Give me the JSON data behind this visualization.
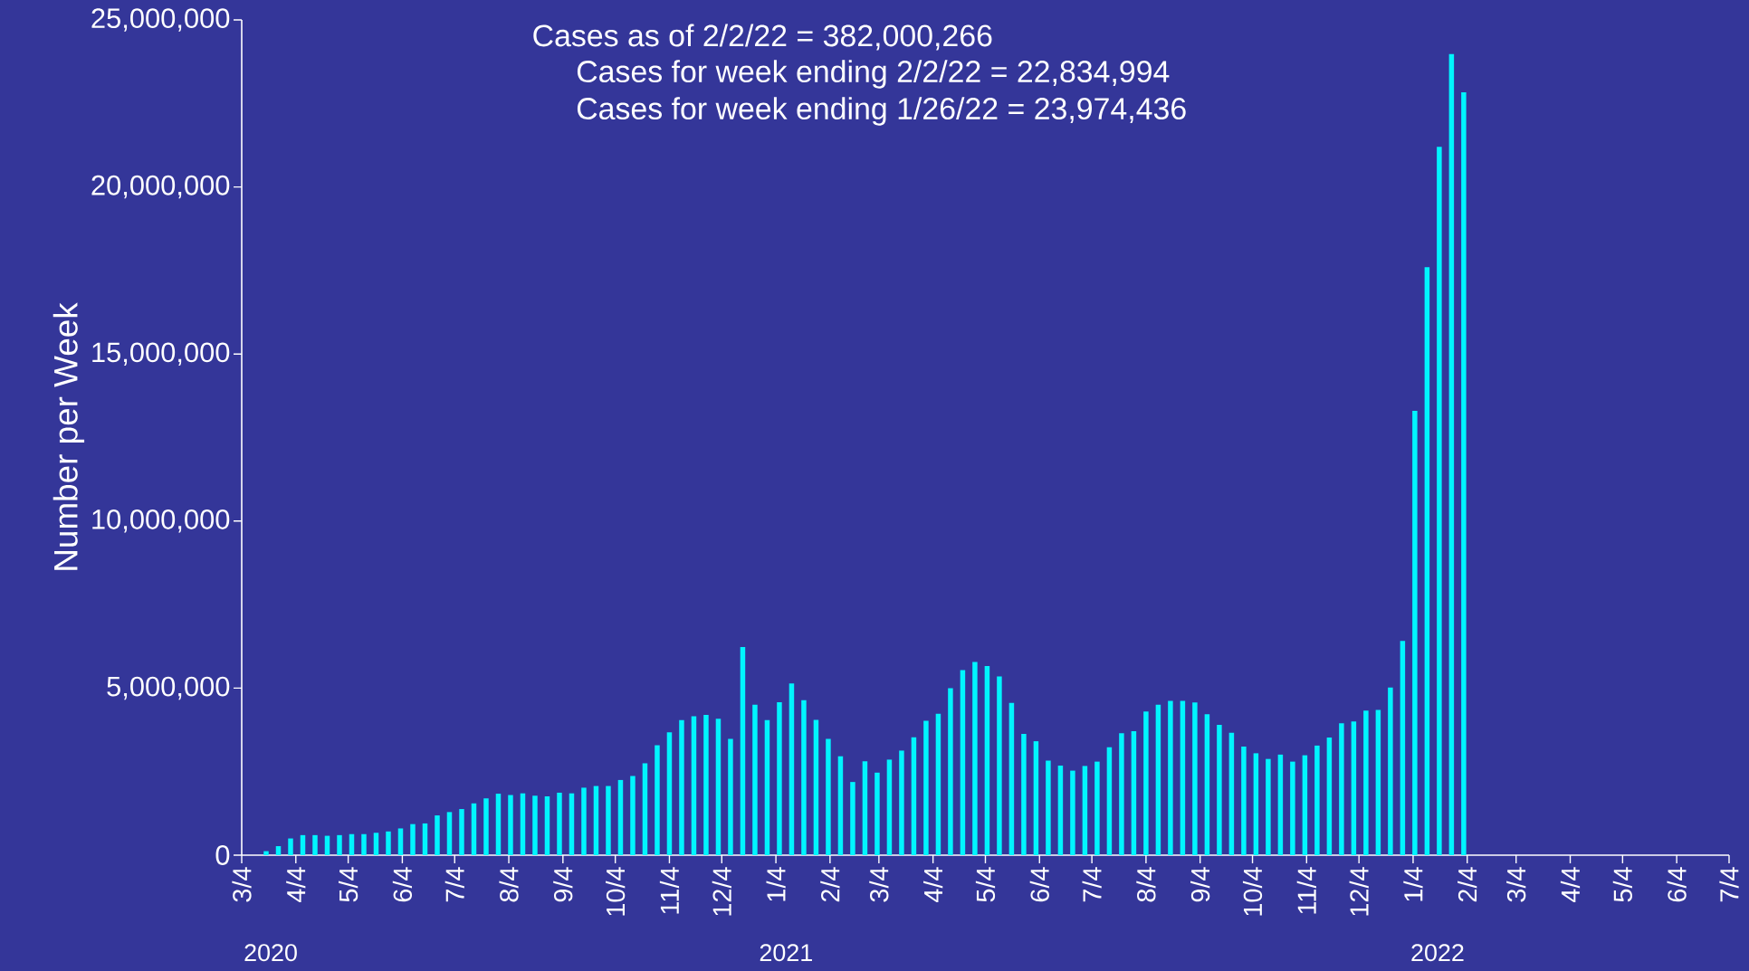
{
  "chart_data": {
    "type": "bar",
    "ylabel": "Number per Week",
    "annotations": [
      "Cases as of 2/2/22 = 382,000,266",
      "Cases for week ending 2/2/22 = 22,834,994",
      "Cases for week ending 1/26/22 = 23,974,436",
      "2020",
      "2021",
      "2022"
    ],
    "color": "#00f5ff",
    "x": [
      "2020-03-18",
      "2020-03-25",
      "2020-04-01",
      "2020-04-08",
      "2020-04-15",
      "2020-04-22",
      "2020-04-29",
      "2020-05-06",
      "2020-05-13",
      "2020-05-20",
      "2020-05-27",
      "2020-06-03",
      "2020-06-10",
      "2020-06-17",
      "2020-06-24",
      "2020-07-01",
      "2020-07-08",
      "2020-07-15",
      "2020-07-22",
      "2020-07-29",
      "2020-08-05",
      "2020-08-12",
      "2020-08-19",
      "2020-08-26",
      "2020-09-02",
      "2020-09-09",
      "2020-09-16",
      "2020-09-23",
      "2020-09-30",
      "2020-10-07",
      "2020-10-14",
      "2020-10-21",
      "2020-10-28",
      "2020-11-04",
      "2020-11-11",
      "2020-11-18",
      "2020-11-25",
      "2020-12-02",
      "2020-12-09",
      "2020-12-16",
      "2020-12-23",
      "2020-12-30",
      "2021-01-06",
      "2021-01-13",
      "2021-01-20",
      "2021-01-27",
      "2021-02-03",
      "2021-02-10",
      "2021-02-17",
      "2021-02-24",
      "2021-03-03",
      "2021-03-10",
      "2021-03-17",
      "2021-03-24",
      "2021-03-31",
      "2021-04-07",
      "2021-04-14",
      "2021-04-21",
      "2021-04-28",
      "2021-05-05",
      "2021-05-12",
      "2021-05-19",
      "2021-05-26",
      "2021-06-02",
      "2021-06-09",
      "2021-06-16",
      "2021-06-23",
      "2021-06-30",
      "2021-07-07",
      "2021-07-14",
      "2021-07-21",
      "2021-07-28",
      "2021-08-04",
      "2021-08-11",
      "2021-08-18",
      "2021-08-25",
      "2021-09-01",
      "2021-09-08",
      "2021-09-15",
      "2021-09-22",
      "2021-09-29",
      "2021-10-06",
      "2021-10-13",
      "2021-10-20",
      "2021-10-27",
      "2021-11-03",
      "2021-11-10",
      "2021-11-17",
      "2021-11-24",
      "2021-12-01",
      "2021-12-08",
      "2021-12-15",
      "2021-12-22",
      "2021-12-29",
      "2022-01-05",
      "2022-01-12",
      "2022-01-19",
      "2022-01-26",
      "2022-02-02"
    ],
    "values": [
      120000,
      270000,
      500000,
      600000,
      600000,
      580000,
      600000,
      630000,
      630000,
      670000,
      710000,
      800000,
      930000,
      950000,
      1190000,
      1290000,
      1380000,
      1550000,
      1700000,
      1840000,
      1800000,
      1850000,
      1780000,
      1760000,
      1870000,
      1850000,
      2020000,
      2070000,
      2070000,
      2250000,
      2370000,
      2750000,
      3290000,
      3680000,
      4040000,
      4160000,
      4200000,
      4080000,
      3480000,
      6230000,
      4500000,
      4040000,
      4580000,
      5140000,
      4640000,
      4050000,
      3480000,
      2960000,
      2190000,
      2810000,
      2470000,
      2860000,
      3130000,
      3530000,
      4020000,
      4230000,
      5000000,
      5540000,
      5780000,
      5660000,
      5350000,
      4560000,
      3630000,
      3410000,
      2830000,
      2680000,
      2530000,
      2670000,
      2800000,
      3230000,
      3650000,
      3710000,
      4300000,
      4500000,
      4620000,
      4620000,
      4570000,
      4220000,
      3900000,
      3660000,
      3250000,
      3050000,
      2880000,
      3010000,
      2800000,
      2990000,
      3280000,
      3520000,
      3950000,
      4000000,
      4330000,
      4350000,
      5020000,
      6410000,
      13300000,
      17600000,
      21200000,
      23974436,
      22834994
    ],
    "xlim": [
      "2020-03-04",
      "2022-07-04"
    ],
    "xticks": [
      {
        "value": "2020-03-04",
        "label": "3/4"
      },
      {
        "value": "2020-04-04",
        "label": "4/4"
      },
      {
        "value": "2020-05-04",
        "label": "5/4"
      },
      {
        "value": "2020-06-04",
        "label": "6/4"
      },
      {
        "value": "2020-07-04",
        "label": "7/4"
      },
      {
        "value": "2020-08-04",
        "label": "8/4"
      },
      {
        "value": "2020-09-04",
        "label": "9/4"
      },
      {
        "value": "2020-10-04",
        "label": "10/4"
      },
      {
        "value": "2020-11-04",
        "label": "11/4"
      },
      {
        "value": "2020-12-04",
        "label": "12/4"
      },
      {
        "value": "2021-01-04",
        "label": "1/4"
      },
      {
        "value": "2021-02-04",
        "label": "2/4"
      },
      {
        "value": "2021-03-04",
        "label": "3/4"
      },
      {
        "value": "2021-04-04",
        "label": "4/4"
      },
      {
        "value": "2021-05-04",
        "label": "5/4"
      },
      {
        "value": "2021-06-04",
        "label": "6/4"
      },
      {
        "value": "2021-07-04",
        "label": "7/4"
      },
      {
        "value": "2021-08-04",
        "label": "8/4"
      },
      {
        "value": "2021-09-04",
        "label": "9/4"
      },
      {
        "value": "2021-10-04",
        "label": "10/4"
      },
      {
        "value": "2021-11-04",
        "label": "11/4"
      },
      {
        "value": "2021-12-04",
        "label": "12/4"
      },
      {
        "value": "2022-01-04",
        "label": "1/4"
      },
      {
        "value": "2022-02-04",
        "label": "2/4"
      },
      {
        "value": "2022-03-04",
        "label": "3/4"
      },
      {
        "value": "2022-04-04",
        "label": "4/4"
      },
      {
        "value": "2022-05-04",
        "label": "5/4"
      },
      {
        "value": "2022-06-04",
        "label": "6/4"
      },
      {
        "value": "2022-07-04",
        "label": "7/4"
      }
    ],
    "ylim": [
      0,
      25000000
    ],
    "yticks": [
      0,
      {
        "value": 5000000,
        "label": "5,000,000"
      },
      {
        "value": 10000000,
        "label": "10,000,000"
      },
      {
        "value": 15000000,
        "label": "15,000,000"
      },
      {
        "value": 20000000,
        "label": "20,000,000"
      },
      {
        "value": 25000000,
        "label": "25,000,000"
      }
    ],
    "grid": false,
    "legend": false
  }
}
